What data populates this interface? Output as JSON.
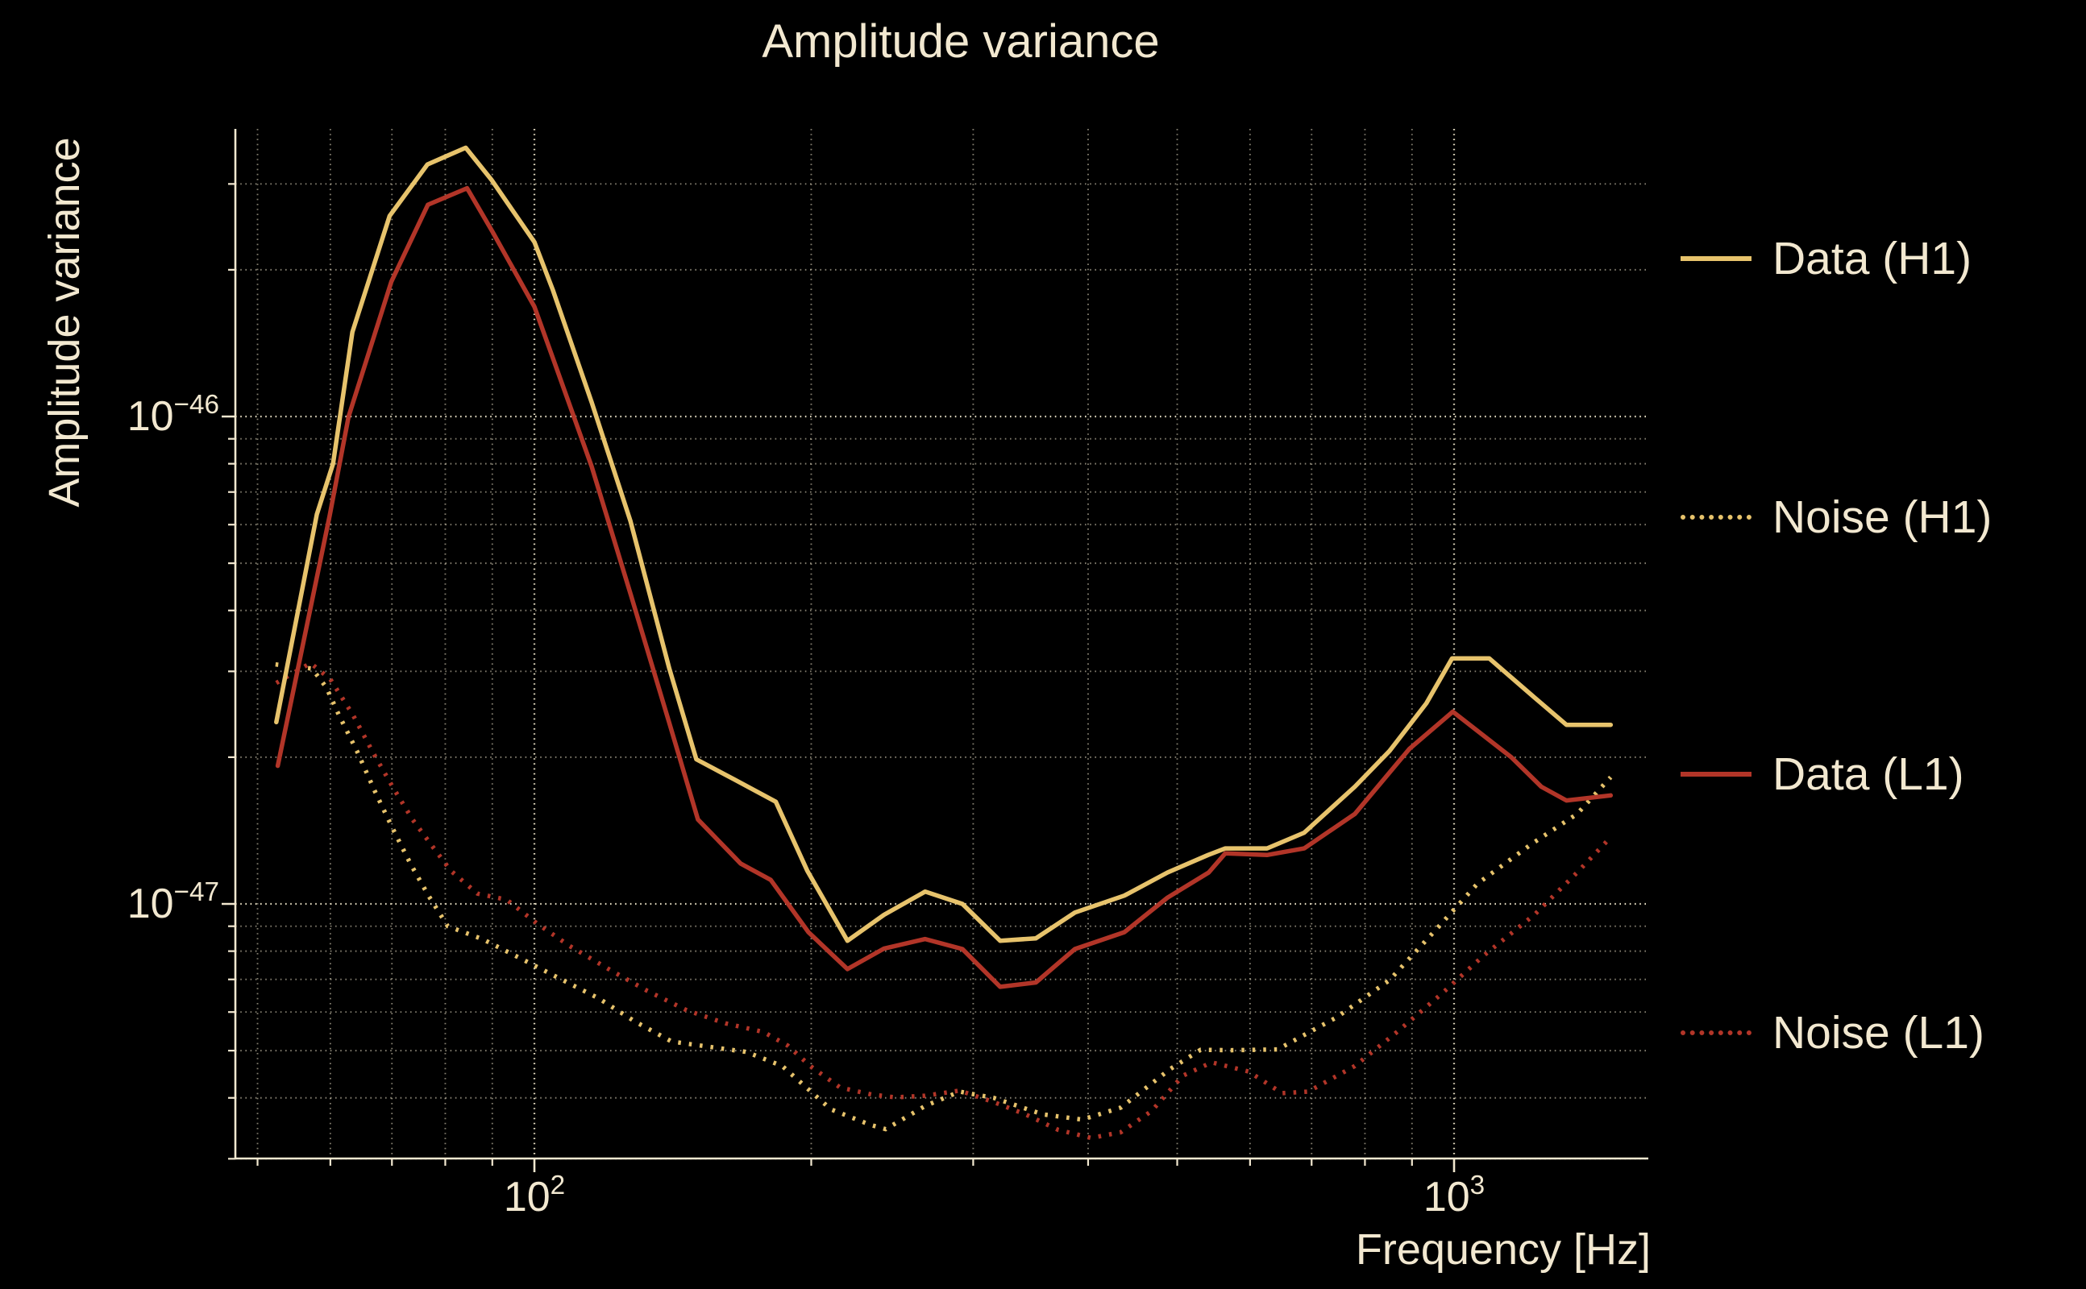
{
  "title": "Amplitude variance",
  "colors": {
    "background": "#000000",
    "text": "#F2E8D0",
    "grid": "#F0E7CC",
    "h1_gold": "#E7C36C",
    "l1_red": "#B23528"
  },
  "legend": {
    "entries": [
      {
        "id": "data-h1",
        "label": "Data (H1)",
        "color": "#E7C36C",
        "style": "solid"
      },
      {
        "id": "noise-h1",
        "label": "Noise (H1)",
        "color": "#E7C36C",
        "style": "dotted"
      },
      {
        "id": "data-l1",
        "label": "Data (L1)",
        "color": "#B23528",
        "style": "solid"
      },
      {
        "id": "noise-l1",
        "label": "Noise (L1)",
        "color": "#B23528",
        "style": "dotted"
      }
    ]
  },
  "chart_data": {
    "type": "line",
    "title": "Amplitude variance",
    "xlabel": "Frequency [Hz]",
    "ylabel": "Amplitude variance",
    "x_scale": "log",
    "y_scale": "log",
    "xlim": [
      47,
      1630
    ],
    "ylim": [
      3e-48,
      3.9e-46
    ],
    "grid": "both",
    "legend_position": "right-outside",
    "x_axis": {
      "major_ticks": [
        {
          "value": 100,
          "label_base": "10",
          "label_exp": "2"
        },
        {
          "value": 1000,
          "label_base": "10",
          "label_exp": "3"
        }
      ],
      "minor_gridlines": [
        50,
        60,
        70,
        80,
        90,
        200,
        300,
        400,
        500,
        600,
        700,
        800,
        900
      ]
    },
    "y_axis": {
      "major_ticks": [
        {
          "value": 1e-46,
          "label_base": "10",
          "label_exp": "−46"
        },
        {
          "value": 1e-47,
          "label_base": "10",
          "label_exp": "−47"
        }
      ],
      "minor_gridlines": [
        3e-46,
        2e-46,
        9e-47,
        8e-47,
        7e-47,
        6e-47,
        5e-47,
        4e-47,
        3e-47,
        2e-47,
        9e-48,
        8e-48,
        7e-48,
        6e-48,
        5e-48,
        4e-48,
        3e-48
      ]
    },
    "series": [
      {
        "name": "Noise (H1)",
        "color": "#E7C36C",
        "style": "dotted",
        "points": [
          [
            52.3,
            3.1e-47
          ],
          [
            57.3,
            3.04e-47
          ],
          [
            59.4,
            2.78e-47
          ],
          [
            61.3,
            2.44e-47
          ],
          [
            64.2,
            2.05e-47
          ],
          [
            67.1,
            1.7e-47
          ],
          [
            70.1,
            1.43e-47
          ],
          [
            73.3,
            1.21e-47
          ],
          [
            76.7,
            1.04e-47
          ],
          [
            80.5,
            9e-48
          ],
          [
            87.9,
            8.46e-48
          ],
          [
            97,
            7.7e-48
          ],
          [
            107,
            7e-48
          ],
          [
            117.5,
            6.4e-48
          ],
          [
            128.6,
            5.74e-48
          ],
          [
            141,
            5.22e-48
          ],
          [
            155,
            5.09e-48
          ],
          [
            170,
            4.97e-48
          ],
          [
            186,
            4.65e-48
          ],
          [
            210,
            3.79e-48
          ],
          [
            232,
            3.52e-48
          ],
          [
            241,
            3.45e-48
          ],
          [
            266,
            3.85e-48
          ],
          [
            290,
            4.12e-48
          ],
          [
            316,
            4e-48
          ],
          [
            357,
            3.7e-48
          ],
          [
            394,
            3.61e-48
          ],
          [
            434,
            3.82e-48
          ],
          [
            491,
            4.58e-48
          ],
          [
            530,
            5.02e-48
          ],
          [
            573,
            5.01e-48
          ],
          [
            643,
            5.03e-48
          ],
          [
            745,
            5.85e-48
          ],
          [
            851,
            6.98e-48
          ],
          [
            959,
            8.92e-48
          ],
          [
            1060,
            1.1e-47
          ],
          [
            1216,
            1.33e-47
          ],
          [
            1361,
            1.53e-47
          ],
          [
            1480,
            1.82e-47
          ]
        ]
      },
      {
        "name": "Noise (L1)",
        "color": "#B23528",
        "style": "dotted",
        "points": [
          [
            52.4,
            2.84e-47
          ],
          [
            57.1,
            3.12e-47
          ],
          [
            60,
            2.89e-47
          ],
          [
            63.5,
            2.44e-47
          ],
          [
            66.8,
            2.04e-47
          ],
          [
            70.1,
            1.74e-47
          ],
          [
            73.7,
            1.49e-47
          ],
          [
            77.3,
            1.32e-47
          ],
          [
            81.1,
            1.17e-47
          ],
          [
            86.7,
            1.05e-47
          ],
          [
            93.3,
            1.02e-47
          ],
          [
            100.8,
            9.1e-48
          ],
          [
            109.2,
            8.2e-48
          ],
          [
            120.9,
            7.32e-48
          ],
          [
            132.7,
            6.63e-48
          ],
          [
            146.4,
            6.05e-48
          ],
          [
            161.3,
            5.69e-48
          ],
          [
            177.5,
            5.46e-48
          ],
          [
            188.6,
            5.12e-48
          ],
          [
            199.5,
            4.65e-48
          ],
          [
            215,
            4.2e-48
          ],
          [
            233,
            4.06e-48
          ],
          [
            247,
            4.01e-48
          ],
          [
            266,
            4.04e-48
          ],
          [
            290,
            4.14e-48
          ],
          [
            316,
            3.92e-48
          ],
          [
            342,
            3.7e-48
          ],
          [
            371,
            3.44e-48
          ],
          [
            403,
            3.31e-48
          ],
          [
            434,
            3.4e-48
          ],
          [
            469,
            3.76e-48
          ],
          [
            507,
            4.44e-48
          ],
          [
            545,
            4.73e-48
          ],
          [
            598,
            4.53e-48
          ],
          [
            650,
            4.09e-48
          ],
          [
            694,
            4.12e-48
          ],
          [
            780,
            4.65e-48
          ],
          [
            869,
            5.48e-48
          ],
          [
            971,
            6.56e-48
          ],
          [
            1075,
            7.81e-48
          ],
          [
            1224,
            9.52e-48
          ],
          [
            1361,
            1.16e-47
          ],
          [
            1480,
            1.37e-47
          ]
        ]
      },
      {
        "name": "Data (L1)",
        "color": "#B23528",
        "style": "solid",
        "points": [
          [
            52.6,
            1.92e-47
          ],
          [
            59.9,
            6.26e-47
          ],
          [
            62.8,
            1e-46
          ],
          [
            69.9,
            1.89e-46
          ],
          [
            76.6,
            2.72e-46
          ],
          [
            84.5,
            2.94e-46
          ],
          [
            90.1,
            2.39e-46
          ],
          [
            100,
            1.68e-46
          ],
          [
            104.7,
            1.32e-46
          ],
          [
            115.4,
            7.9e-47
          ],
          [
            127.2,
            4.33e-47
          ],
          [
            140.2,
            2.35e-47
          ],
          [
            150.6,
            1.49e-47
          ],
          [
            167.6,
            1.21e-47
          ],
          [
            180.7,
            1.12e-47
          ],
          [
            198.6,
            8.75e-48
          ],
          [
            219,
            7.35e-48
          ],
          [
            240,
            8.1e-48
          ],
          [
            266,
            8.47e-48
          ],
          [
            292,
            8.08e-48
          ],
          [
            321,
            6.76e-48
          ],
          [
            351,
            6.9e-48
          ],
          [
            387,
            8.08e-48
          ],
          [
            438,
            8.75e-48
          ],
          [
            488,
            1.03e-47
          ],
          [
            541,
            1.16e-47
          ],
          [
            564,
            1.27e-47
          ],
          [
            626,
            1.26e-47
          ],
          [
            687,
            1.3e-47
          ],
          [
            780,
            1.53e-47
          ],
          [
            894,
            2.08e-47
          ],
          [
            997,
            2.48e-47
          ],
          [
            1154,
            2e-47
          ],
          [
            1244,
            1.74e-47
          ],
          [
            1325,
            1.63e-47
          ],
          [
            1480,
            1.67e-47
          ]
        ]
      },
      {
        "name": "Data (H1)",
        "color": "#E7C36C",
        "style": "solid",
        "points": [
          [
            52.4,
            2.36e-47
          ],
          [
            58,
            6.3e-47
          ],
          [
            60.4,
            8e-47
          ],
          [
            63.4,
            1.49e-46
          ],
          [
            69.6,
            2.58e-46
          ],
          [
            76.5,
            3.29e-46
          ],
          [
            79.9,
            3.41e-46
          ],
          [
            84.2,
            3.56e-46
          ],
          [
            89.8,
            3.06e-46
          ],
          [
            100,
            2.28e-46
          ],
          [
            104.7,
            1.82e-46
          ],
          [
            115.4,
            1.07e-46
          ],
          [
            127.2,
            6.1e-47
          ],
          [
            140.2,
            3.04e-47
          ],
          [
            150,
            1.98e-47
          ],
          [
            165,
            1.8e-47
          ],
          [
            183,
            1.62e-47
          ],
          [
            198,
            1.17e-47
          ],
          [
            219,
            8.4e-48
          ],
          [
            240,
            9.5e-48
          ],
          [
            266,
            1.06e-47
          ],
          [
            292,
            1e-47
          ],
          [
            321,
            8.4e-48
          ],
          [
            351,
            8.5e-48
          ],
          [
            387,
            9.6e-48
          ],
          [
            438,
            1.04e-47
          ],
          [
            488,
            1.16e-47
          ],
          [
            540,
            1.26e-47
          ],
          [
            564,
            1.3e-47
          ],
          [
            626,
            1.3e-47
          ],
          [
            687,
            1.4e-47
          ],
          [
            780,
            1.74e-47
          ],
          [
            851,
            2.06e-47
          ],
          [
            933,
            2.58e-47
          ],
          [
            995,
            3.19e-47
          ],
          [
            1092,
            3.19e-47
          ],
          [
            1215,
            2.68e-47
          ],
          [
            1325,
            2.33e-47
          ],
          [
            1480,
            2.33e-47
          ]
        ]
      }
    ]
  }
}
